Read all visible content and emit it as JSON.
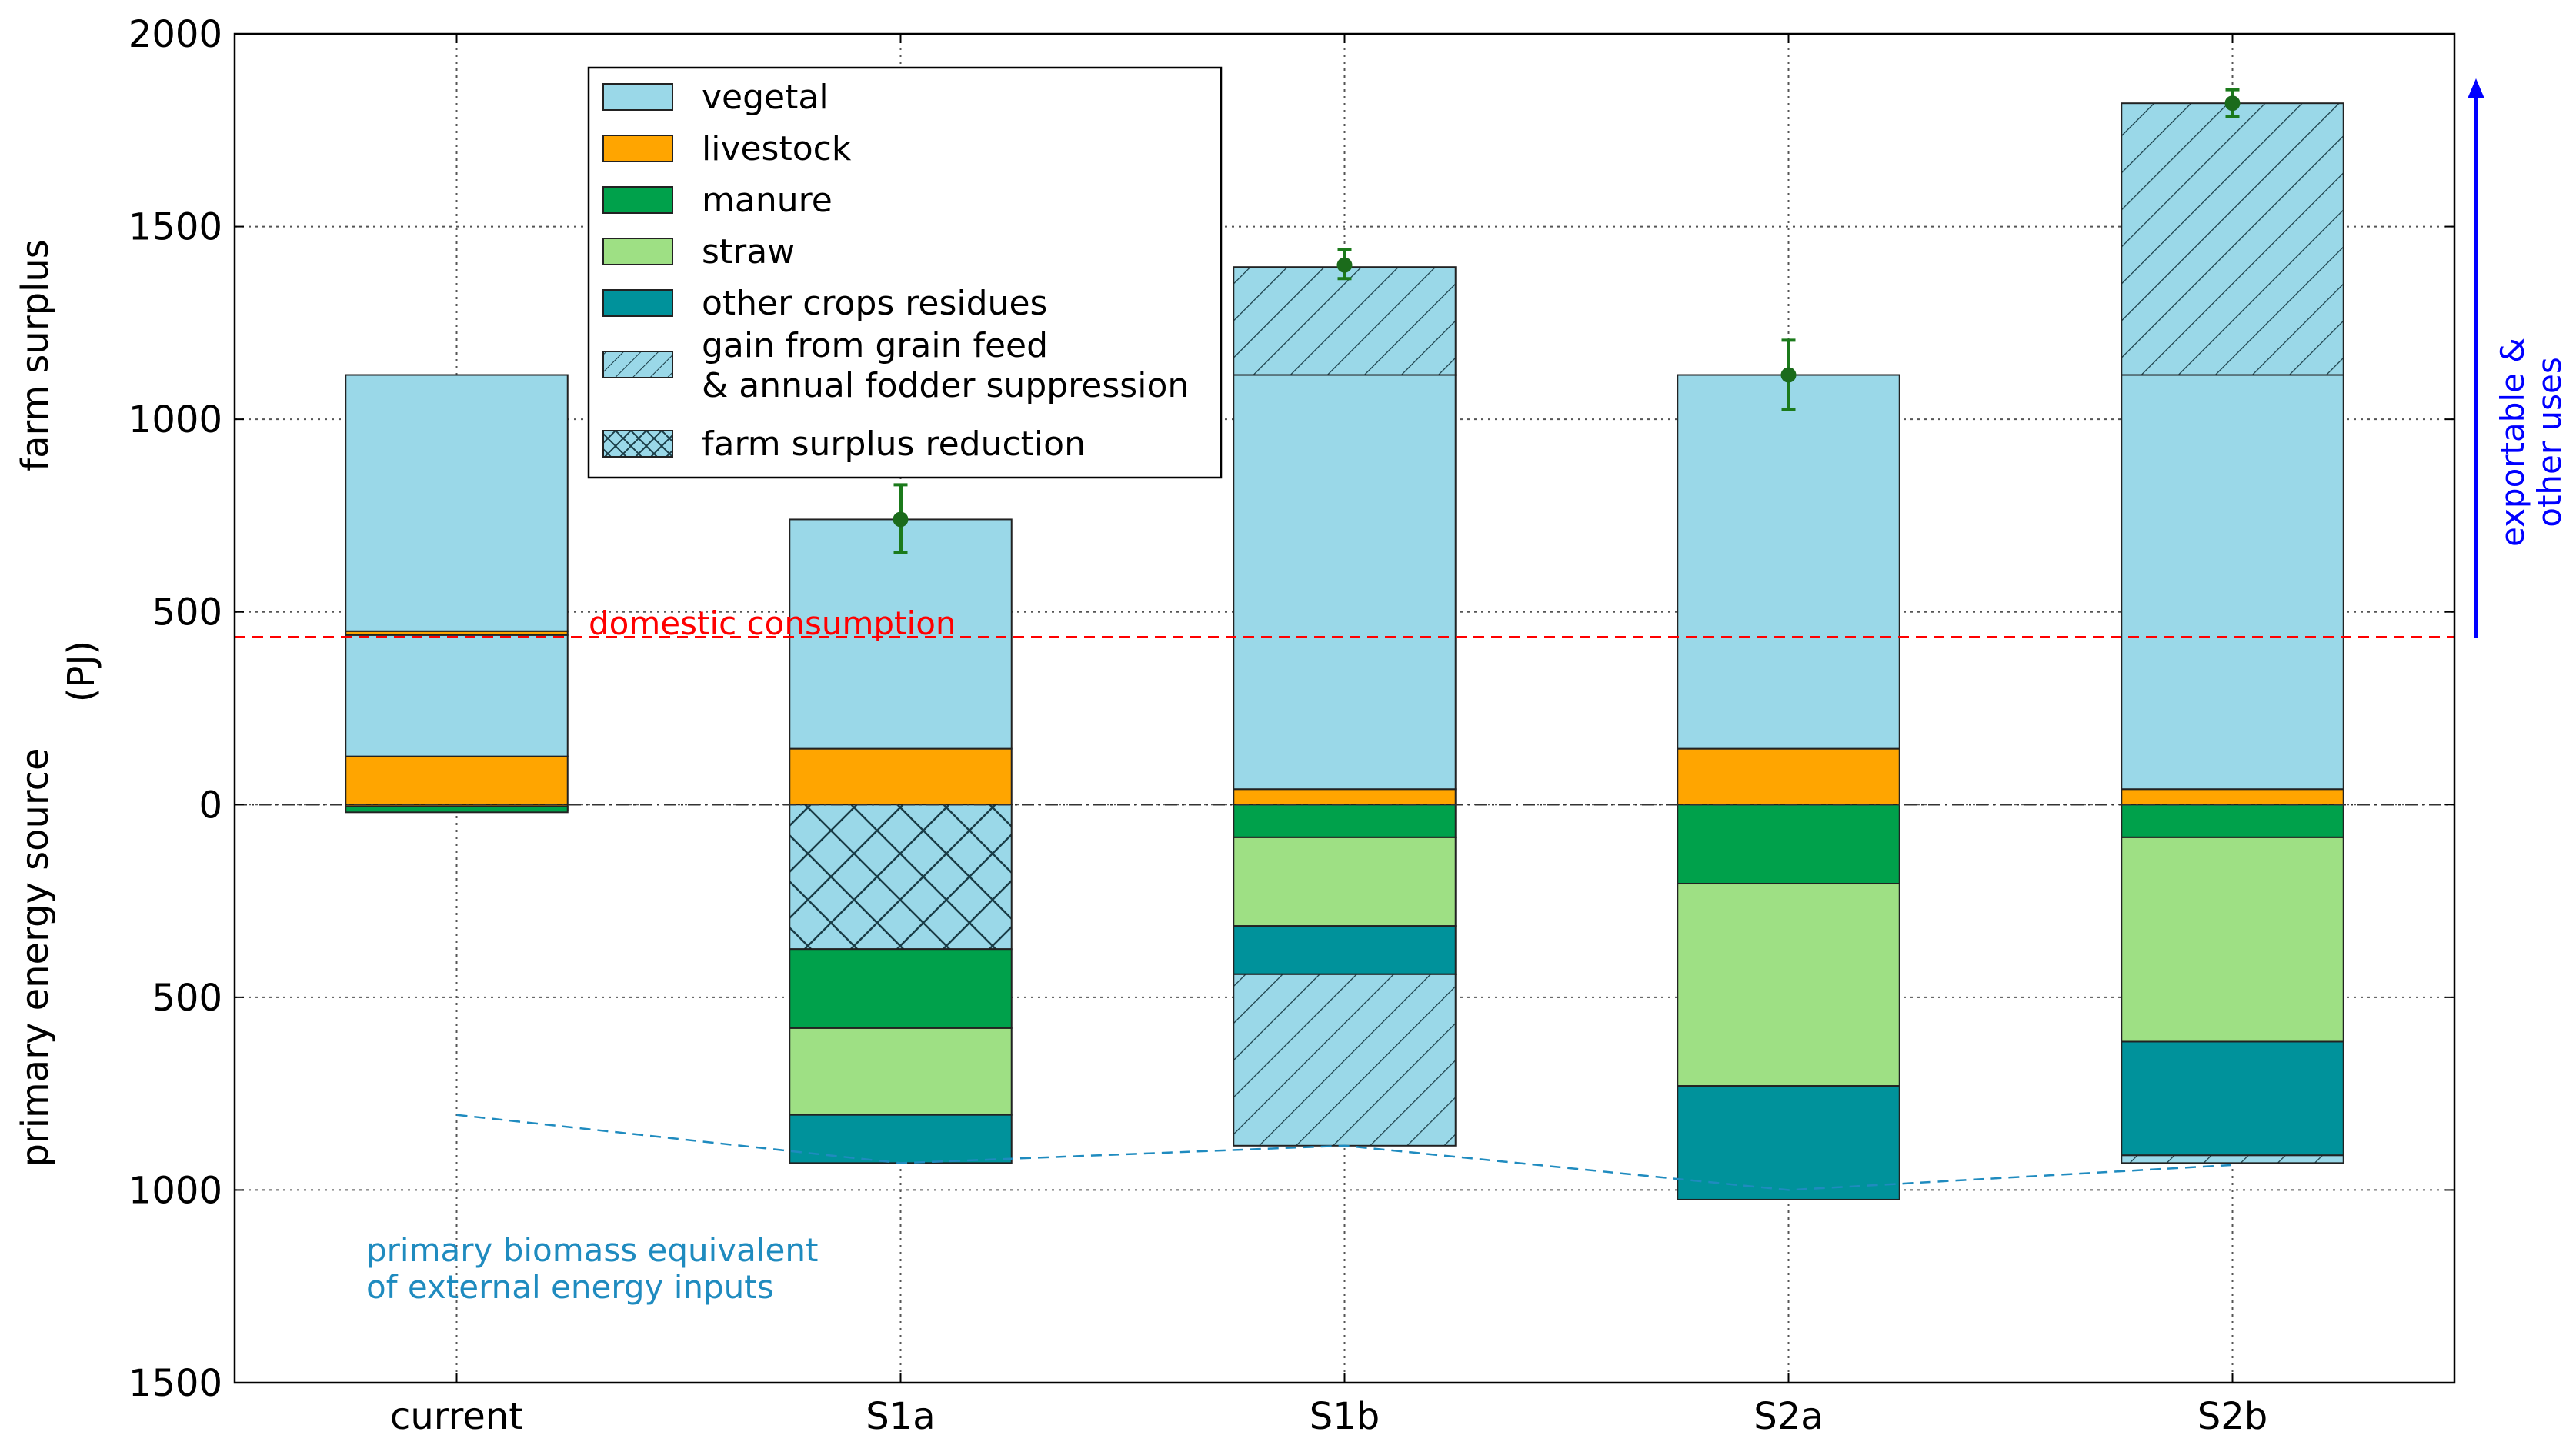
{
  "chart_data": {
    "type": "bar",
    "stacked": true,
    "categories": [
      "current",
      "S1a",
      "S1b",
      "S2a",
      "S2b"
    ],
    "y_axis": {
      "range": [
        -1500,
        2000
      ],
      "ticks": [
        2000,
        1500,
        1000,
        500,
        0,
        -500,
        -1000,
        -1500
      ],
      "tick_labels": [
        "2000",
        "1500",
        "1000",
        "500",
        "0",
        "500",
        "1000",
        "1500"
      ],
      "label_upper": "farm surplus",
      "label_lower": "primary energy source",
      "unit": "(PJ)"
    },
    "grid": true,
    "legend_position": "upper-left",
    "series_styles": {
      "vegetal": {
        "label": "vegetal",
        "color": "#9ad8e8",
        "hatch": "none"
      },
      "livestock": {
        "label": "livestock",
        "color": "#ffa500",
        "hatch": "none"
      },
      "manure": {
        "label": "manure",
        "color": "#00a14b",
        "hatch": "none"
      },
      "straw": {
        "label": "straw",
        "color": "#9ee084",
        "hatch": "none"
      },
      "other": {
        "label": "other crops residues",
        "color": "#00929b",
        "hatch": "none"
      },
      "gain": {
        "label_line1": "gain from grain feed",
        "label_line2": "& annual fodder suppression",
        "color": "#9ad8e8",
        "hatch": "diag"
      },
      "reduction": {
        "label": "farm surplus reduction",
        "color": "#9ad8e8",
        "hatch": "cross"
      }
    },
    "legend_order": [
      "vegetal",
      "livestock",
      "manure",
      "straw",
      "other",
      "gain",
      "reduction"
    ],
    "bars": [
      {
        "category": "current",
        "segments": [
          {
            "series": "livestock",
            "from": -15,
            "to": 0
          },
          {
            "series": "manure",
            "from": -20,
            "to": -5
          },
          {
            "series": "livestock",
            "from": 0,
            "to": 125
          },
          {
            "series": "vegetal",
            "from": 125,
            "to": 440
          },
          {
            "series": "livestock",
            "from": 440,
            "to": 450
          },
          {
            "series": "vegetal",
            "from": 450,
            "to": 1115
          }
        ]
      },
      {
        "category": "S1a",
        "segments": [
          {
            "series": "livestock",
            "from": 0,
            "to": 145
          },
          {
            "series": "vegetal",
            "from": 145,
            "to": 740
          },
          {
            "series": "reduction",
            "from": -375,
            "to": 0
          },
          {
            "series": "manure",
            "from": -580,
            "to": -375
          },
          {
            "series": "straw",
            "from": -805,
            "to": -580
          },
          {
            "series": "other",
            "from": -930,
            "to": -805
          }
        ]
      },
      {
        "category": "S1b",
        "segments": [
          {
            "series": "livestock",
            "from": 0,
            "to": 40
          },
          {
            "series": "vegetal",
            "from": 40,
            "to": 1115
          },
          {
            "series": "gain",
            "from": 1115,
            "to": 1395
          },
          {
            "series": "manure",
            "from": -85,
            "to": 0
          },
          {
            "series": "straw",
            "from": -315,
            "to": -85
          },
          {
            "series": "other",
            "from": -440,
            "to": -315
          },
          {
            "series": "gain",
            "from": -885,
            "to": -440
          }
        ]
      },
      {
        "category": "S2a",
        "segments": [
          {
            "series": "livestock",
            "from": 0,
            "to": 145
          },
          {
            "series": "vegetal",
            "from": 145,
            "to": 1115
          },
          {
            "series": "manure",
            "from": -205,
            "to": 0
          },
          {
            "series": "straw",
            "from": -730,
            "to": -205
          },
          {
            "series": "other",
            "from": -1025,
            "to": -730
          }
        ]
      },
      {
        "category": "S2b",
        "segments": [
          {
            "series": "livestock",
            "from": 0,
            "to": 40
          },
          {
            "series": "vegetal",
            "from": 40,
            "to": 1115
          },
          {
            "series": "gain",
            "from": 1115,
            "to": 1820
          },
          {
            "series": "manure",
            "from": -85,
            "to": 0
          },
          {
            "series": "straw",
            "from": -615,
            "to": -85
          },
          {
            "series": "other",
            "from": -910,
            "to": -615
          },
          {
            "series": "gain",
            "from": -930,
            "to": -910
          }
        ]
      }
    ],
    "error_bars": [
      {
        "category": "S1a",
        "value": 740,
        "low": 655,
        "high": 830
      },
      {
        "category": "S1b",
        "value": 1400,
        "low": 1365,
        "high": 1440
      },
      {
        "category": "S2a",
        "value": 1115,
        "low": 1025,
        "high": 1205
      },
      {
        "category": "S2b",
        "value": 1820,
        "low": 1785,
        "high": 1855
      }
    ],
    "domestic_consumption": {
      "value": 435,
      "label": "domestic consumption",
      "color": "#ff0000"
    },
    "zero_line": {
      "value": 0
    },
    "external_inputs": {
      "label_line1": "primary biomass equivalent",
      "label_line2": "of external energy inputs",
      "color": "#1f8bbf",
      "values": [
        -805,
        -930,
        -885,
        -1000,
        -935
      ]
    },
    "arrow": {
      "label_line1": "exportable &",
      "label_line2": "other uses",
      "color": "#0000ff",
      "from": 440,
      "to": 1880
    }
  }
}
